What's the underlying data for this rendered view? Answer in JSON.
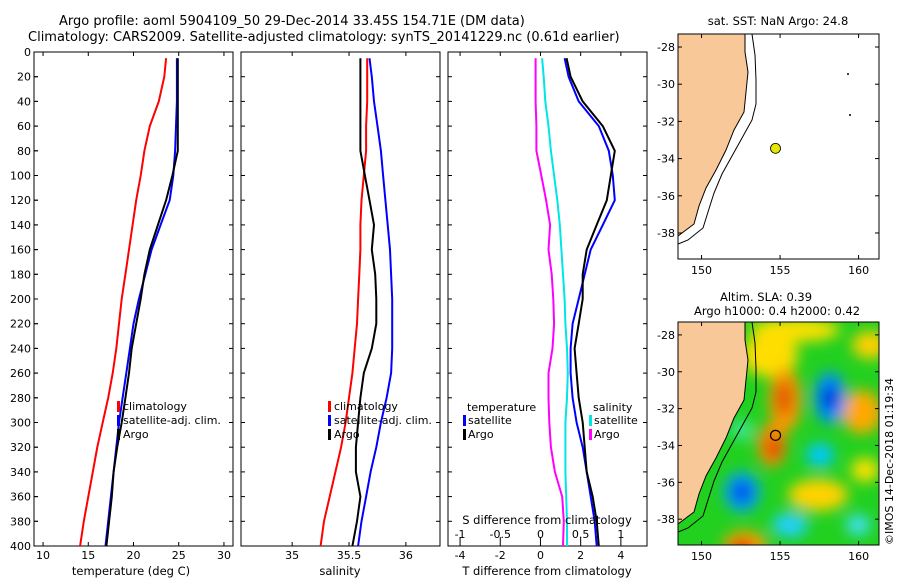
{
  "header": {
    "title_line1": "Argo profile: aoml 5904109_50 29-Dec-2014 33.45S 154.71E (DM data)",
    "title_line2": "Climatology: CARS2009. Satellite-adjusted climatology: synTS_20141229.nc (0.61d earlier)"
  },
  "colors": {
    "climatology": "#ff0000",
    "satellite": "#0000ff",
    "argo": "#000000",
    "s_climatology": "#ff00ff",
    "s_satellite": "#00e5e5",
    "land": "#f8c898",
    "sst_marker": "#e6e600"
  },
  "depth_axis": {
    "ticks": [
      0,
      20,
      40,
      60,
      80,
      100,
      120,
      140,
      160,
      180,
      200,
      220,
      240,
      260,
      280,
      300,
      320,
      340,
      360,
      380,
      400
    ],
    "ylim": [
      0,
      400
    ]
  },
  "chart_data": [
    {
      "type": "line",
      "panel": "temperature",
      "xlabel": "temperature (deg C)",
      "xlim": [
        9,
        31
      ],
      "xticks": [
        10,
        15,
        20,
        25,
        30
      ],
      "depth": [
        5,
        20,
        40,
        60,
        80,
        100,
        120,
        140,
        160,
        180,
        200,
        220,
        240,
        260,
        280,
        300,
        320,
        340,
        360,
        380,
        400
      ],
      "series": [
        {
          "name": "climatology",
          "values": [
            23.6,
            23.4,
            22.8,
            21.8,
            21.2,
            20.8,
            20.3,
            19.9,
            19.5,
            19.1,
            18.7,
            18.4,
            18.1,
            17.7,
            17.2,
            16.6,
            16.0,
            15.5,
            15.0,
            14.5,
            14.1
          ]
        },
        {
          "name": "satellite-adj. clim.",
          "values": [
            24.8,
            24.8,
            24.8,
            24.7,
            24.6,
            24.4,
            24.0,
            23.0,
            22.0,
            21.3,
            20.6,
            20.0,
            19.6,
            19.2,
            18.8,
            18.4,
            18.1,
            17.8,
            17.5,
            17.2,
            16.9
          ]
        },
        {
          "name": "Argo",
          "values": [
            24.9,
            24.9,
            24.9,
            24.9,
            24.9,
            24.3,
            23.6,
            22.7,
            21.8,
            21.2,
            20.8,
            20.3,
            19.8,
            19.5,
            19.1,
            18.7,
            18.2,
            17.8,
            17.6,
            17.3,
            17.0
          ]
        }
      ],
      "legend": [
        "climatology",
        "satellite-adj. clim.",
        "Argo"
      ]
    },
    {
      "type": "line",
      "panel": "salinity",
      "xlabel": "salinity",
      "xlim": [
        34.55,
        36.3
      ],
      "xticks": [
        35,
        35.5,
        36
      ],
      "xtick_labels": [
        "35",
        "35.5",
        "36"
      ],
      "depth": [
        5,
        20,
        40,
        60,
        80,
        100,
        120,
        140,
        160,
        180,
        200,
        220,
        240,
        260,
        280,
        300,
        320,
        340,
        360,
        380,
        400
      ],
      "series": [
        {
          "name": "climatology",
          "values": [
            35.66,
            35.66,
            35.66,
            35.65,
            35.65,
            35.63,
            35.61,
            35.6,
            35.6,
            35.59,
            35.58,
            35.57,
            35.55,
            35.53,
            35.5,
            35.47,
            35.43,
            35.38,
            35.33,
            35.28,
            35.25
          ]
        },
        {
          "name": "satellite-adj. clim.",
          "values": [
            35.68,
            35.7,
            35.72,
            35.75,
            35.78,
            35.8,
            35.82,
            35.84,
            35.86,
            35.87,
            35.88,
            35.88,
            35.88,
            35.87,
            35.83,
            35.78,
            35.74,
            35.69,
            35.65,
            35.61,
            35.58
          ]
        },
        {
          "name": "Argo",
          "values": [
            35.6,
            35.6,
            35.6,
            35.6,
            35.6,
            35.64,
            35.68,
            35.72,
            35.7,
            35.73,
            35.74,
            35.74,
            35.7,
            35.63,
            35.6,
            35.58,
            35.56,
            35.56,
            35.6,
            35.57,
            35.53
          ]
        }
      ],
      "legend": [
        "climatology",
        "satellite-adj. clim.",
        "Argo"
      ]
    },
    {
      "type": "line",
      "panel": "difference",
      "xlabel": "T difference from climatology",
      "x2label": "S difference from climatology",
      "xlim": [
        -4.6,
        5.3
      ],
      "xticks": [
        -4,
        -2,
        0,
        2,
        4
      ],
      "x2lim": [
        -1.15,
        1.325
      ],
      "x2ticks": [
        -1,
        -0.5,
        0,
        0.5,
        1
      ],
      "x2tick_labels": [
        "-1",
        "-0.5",
        "0",
        "0.5",
        "1"
      ],
      "depth": [
        5,
        20,
        40,
        60,
        80,
        100,
        120,
        140,
        160,
        180,
        200,
        220,
        240,
        260,
        280,
        300,
        320,
        340,
        360,
        380,
        400
      ],
      "series": [
        {
          "name": "temperature satellite",
          "axis": "T",
          "values": [
            1.2,
            1.4,
            1.9,
            2.9,
            3.4,
            3.6,
            3.7,
            3.1,
            2.5,
            2.2,
            1.9,
            1.6,
            1.5,
            1.5,
            1.6,
            1.8,
            2.1,
            2.3,
            2.5,
            2.7,
            2.8
          ]
        },
        {
          "name": "temperature Argo",
          "axis": "T",
          "values": [
            1.3,
            1.5,
            2.1,
            3.1,
            3.7,
            3.5,
            3.3,
            2.8,
            2.3,
            2.1,
            2.1,
            1.9,
            1.7,
            1.8,
            1.9,
            2.1,
            2.2,
            2.3,
            2.6,
            2.8,
            2.9
          ]
        },
        {
          "name": "salinity satellite",
          "axis": "S",
          "values": [
            0.02,
            0.04,
            0.06,
            0.1,
            0.13,
            0.17,
            0.21,
            0.24,
            0.26,
            0.28,
            0.3,
            0.31,
            0.33,
            0.34,
            0.33,
            0.31,
            0.31,
            0.31,
            0.32,
            0.33,
            0.33
          ]
        },
        {
          "name": "salinity Argo",
          "axis": "S",
          "values": [
            -0.06,
            -0.06,
            -0.06,
            -0.05,
            -0.05,
            0.01,
            0.07,
            0.12,
            0.1,
            0.14,
            0.16,
            0.17,
            0.15,
            0.1,
            0.1,
            0.11,
            0.13,
            0.18,
            0.27,
            0.29,
            0.28
          ]
        }
      ],
      "legend_left": {
        "heading": "temperature",
        "items": [
          "satellite",
          "Argo"
        ]
      },
      "legend_right": {
        "heading": "salinity",
        "items": [
          "satellite",
          "Argo"
        ]
      }
    }
  ],
  "map_sst": {
    "title": "sat. SST: NaN Argo: 24.8",
    "lon_ticks": [
      150,
      155,
      160
    ],
    "lat_ticks": [
      -28,
      -30,
      -32,
      -34,
      -36,
      -38
    ],
    "lon_range": [
      148.5,
      161.3
    ],
    "lat_range": [
      -39.4,
      -27.3
    ],
    "argo_position": {
      "lon": 154.71,
      "lat": -33.45
    }
  },
  "map_sla": {
    "title_line1": "Altim. SLA: 0.39",
    "title_line2": "Argo h1000: 0.4 h2000: 0.42",
    "lon_ticks": [
      150,
      155,
      160
    ],
    "lat_ticks": [
      -28,
      -30,
      -32,
      -34,
      -36,
      -38
    ],
    "lon_range": [
      148.5,
      161.3
    ],
    "lat_range": [
      -39.4,
      -27.3
    ],
    "argo_position": {
      "lon": 154.71,
      "lat": -33.45
    }
  },
  "footer": {
    "credit": "©IMOS 14-Dec-2018 01:19:34"
  }
}
